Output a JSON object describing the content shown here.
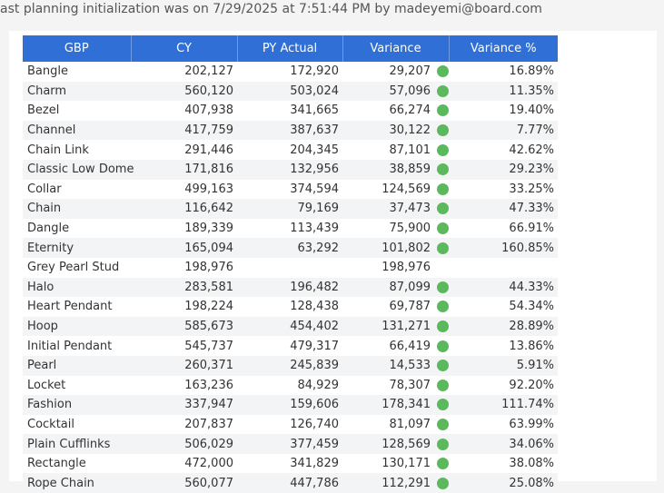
{
  "banner": {
    "text": "ast planning initialization was on 7/29/2025 at 7:51:44 PM by madeyemi@board.com"
  },
  "table": {
    "columns": [
      "GBP",
      "CY",
      "PY Actual",
      "Variance",
      "Variance %"
    ],
    "status_color": "#5cb85c",
    "rows": [
      {
        "name": "Bangle",
        "cy": "202,127",
        "py": "172,920",
        "var": "29,207",
        "pct": "16.89%",
        "dot": true
      },
      {
        "name": "Charm",
        "cy": "560,120",
        "py": "503,024",
        "var": "57,096",
        "pct": "11.35%",
        "dot": true
      },
      {
        "name": "Bezel",
        "cy": "407,938",
        "py": "341,665",
        "var": "66,274",
        "pct": "19.40%",
        "dot": true
      },
      {
        "name": "Channel",
        "cy": "417,759",
        "py": "387,637",
        "var": "30,122",
        "pct": "7.77%",
        "dot": true
      },
      {
        "name": "Chain Link",
        "cy": "291,446",
        "py": "204,345",
        "var": "87,101",
        "pct": "42.62%",
        "dot": true
      },
      {
        "name": "Classic Low Dome",
        "cy": "171,816",
        "py": "132,956",
        "var": "38,859",
        "pct": "29.23%",
        "dot": true
      },
      {
        "name": "Collar",
        "cy": "499,163",
        "py": "374,594",
        "var": "124,569",
        "pct": "33.25%",
        "dot": true
      },
      {
        "name": "Chain",
        "cy": "116,642",
        "py": "79,169",
        "var": "37,473",
        "pct": "47.33%",
        "dot": true
      },
      {
        "name": "Dangle",
        "cy": "189,339",
        "py": "113,439",
        "var": "75,900",
        "pct": "66.91%",
        "dot": true
      },
      {
        "name": "Eternity",
        "cy": "165,094",
        "py": "63,292",
        "var": "101,802",
        "pct": "160.85%",
        "dot": true
      },
      {
        "name": "Grey Pearl Stud",
        "cy": "198,976",
        "py": "",
        "var": "198,976",
        "pct": "",
        "dot": false
      },
      {
        "name": "Halo",
        "cy": "283,581",
        "py": "196,482",
        "var": "87,099",
        "pct": "44.33%",
        "dot": true
      },
      {
        "name": "Heart Pendant",
        "cy": "198,224",
        "py": "128,438",
        "var": "69,787",
        "pct": "54.34%",
        "dot": true
      },
      {
        "name": "Hoop",
        "cy": "585,673",
        "py": "454,402",
        "var": "131,271",
        "pct": "28.89%",
        "dot": true
      },
      {
        "name": "Initial Pendant",
        "cy": "545,737",
        "py": "479,317",
        "var": "66,419",
        "pct": "13.86%",
        "dot": true
      },
      {
        "name": "Pearl",
        "cy": "260,371",
        "py": "245,839",
        "var": "14,533",
        "pct": "5.91%",
        "dot": true
      },
      {
        "name": "Locket",
        "cy": "163,236",
        "py": "84,929",
        "var": "78,307",
        "pct": "92.20%",
        "dot": true
      },
      {
        "name": "Fashion",
        "cy": "337,947",
        "py": "159,606",
        "var": "178,341",
        "pct": "111.74%",
        "dot": true
      },
      {
        "name": "Cocktail",
        "cy": "207,837",
        "py": "126,740",
        "var": "81,097",
        "pct": "63.99%",
        "dot": true
      },
      {
        "name": "Plain Cufflinks",
        "cy": "506,029",
        "py": "377,459",
        "var": "128,569",
        "pct": "34.06%",
        "dot": true
      },
      {
        "name": "Rectangle",
        "cy": "472,000",
        "py": "341,829",
        "var": "130,171",
        "pct": "38.08%",
        "dot": true
      },
      {
        "name": "Rope Chain",
        "cy": "560,077",
        "py": "447,786",
        "var": "112,291",
        "pct": "25.08%",
        "dot": true
      }
    ]
  }
}
